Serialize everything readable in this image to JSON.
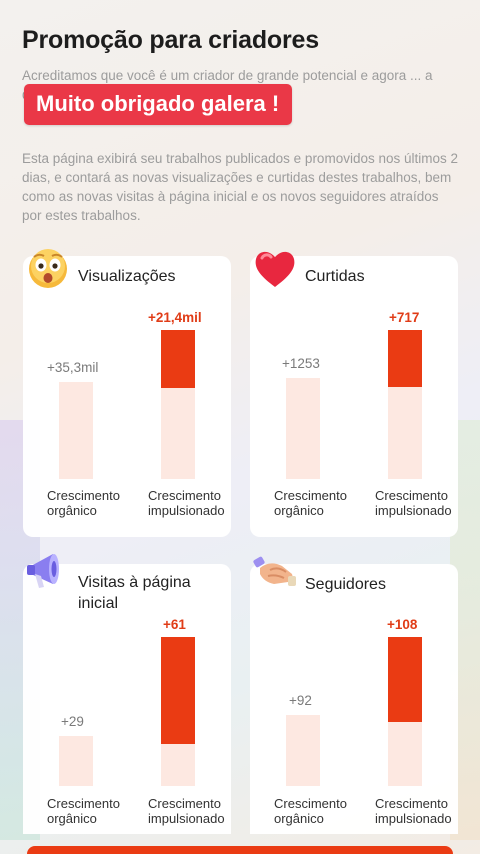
{
  "header": {
    "title": "Promoção para criadores",
    "description_1": "Acreditamos que você é um criador de grande potencial e agora ... a que mais ... údo de qualidade!",
    "description_2": "Esta página exibirá seu trabalhos publicados e promovidos nos últimos 2 dias, e contará as novas visualizações e curtidas destes trabalhos, bem como as novas visitas à página inicial e os novos seguidores atraídos por estes trabalhos."
  },
  "banner": {
    "text": "Muito obrigado galera !"
  },
  "labels": {
    "organic": "Crescimento orgânico",
    "boosted": "Crescimento impulsionado"
  },
  "colors": {
    "accent": "#ea3b13",
    "bar_light": "#fde8e1",
    "banner": "#ea3847"
  },
  "cards": [
    {
      "title": "Visualizações",
      "icon": "surprised-emoji-icon",
      "organic_value": "+35,3mil",
      "boosted_value": "+21,4mil",
      "boosted_fill_fraction": 0.6
    },
    {
      "title": "Curtidas",
      "icon": "heart-icon",
      "organic_value": "+1253",
      "boosted_value": "+717",
      "boosted_fill_fraction": 0.6
    },
    {
      "title": "Visitas à página inicial",
      "icon": "megaphone-icon",
      "organic_value": "+29",
      "boosted_value": "+61",
      "boosted_fill_fraction": 0.7
    },
    {
      "title": "Seguidores",
      "icon": "handshake-icon",
      "organic_value": "+92",
      "boosted_value": "+108",
      "boosted_fill_fraction": 0.56
    }
  ]
}
